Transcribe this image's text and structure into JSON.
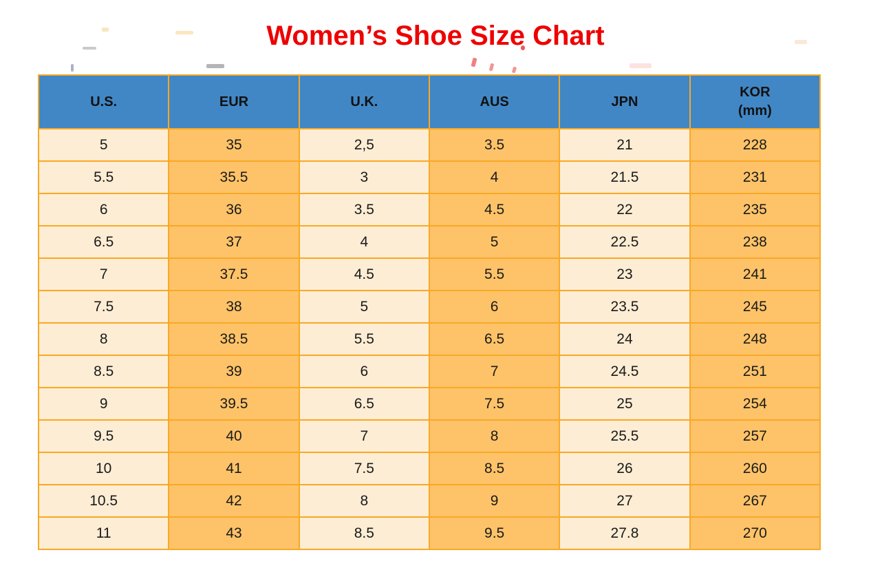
{
  "page": {
    "title": "Women’s Shoe Size Chart"
  },
  "colors": {
    "title_red": "#EE0000",
    "header_blue": "#4187C6",
    "cell_cream": "#FDEDD4",
    "cell_orange": "#FEC368",
    "border_orange": "#F9A825",
    "cell_text": "#1A1A1A"
  },
  "table": {
    "headers": [
      {
        "line1": "U.S."
      },
      {
        "line1": "EUR"
      },
      {
        "line1": "U.K."
      },
      {
        "line1": "AUS"
      },
      {
        "line1": "JPN"
      },
      {
        "line1": "KOR",
        "line2": "(mm)"
      }
    ]
  },
  "chart_data": {
    "type": "table",
    "title": "Women’s Shoe Size Chart",
    "columns": [
      "U.S.",
      "EUR",
      "U.K.",
      "AUS",
      "JPN",
      "KOR (mm)"
    ],
    "rows": [
      [
        "5",
        "35",
        "2,5",
        "3.5",
        "21",
        "228"
      ],
      [
        "5.5",
        "35.5",
        "3",
        "4",
        "21.5",
        "231"
      ],
      [
        "6",
        "36",
        "3.5",
        "4.5",
        "22",
        "235"
      ],
      [
        "6.5",
        "37",
        "4",
        "5",
        "22.5",
        "238"
      ],
      [
        "7",
        "37.5",
        "4.5",
        "5.5",
        "23",
        "241"
      ],
      [
        "7.5",
        "38",
        "5",
        "6",
        "23.5",
        "245"
      ],
      [
        "8",
        "38.5",
        "5.5",
        "6.5",
        "24",
        "248"
      ],
      [
        "8.5",
        "39",
        "6",
        "7",
        "24.5",
        "251"
      ],
      [
        "9",
        "39.5",
        "6.5",
        "7.5",
        "25",
        "254"
      ],
      [
        "9.5",
        "40",
        "7",
        "8",
        "25.5",
        "257"
      ],
      [
        "10",
        "41",
        "7.5",
        "8.5",
        "26",
        "260"
      ],
      [
        "10.5",
        "42",
        "8",
        "9",
        "27",
        "267"
      ],
      [
        "11",
        "43",
        "8.5",
        "9.5",
        "27.8",
        "270"
      ]
    ],
    "layout": {
      "header_fill": "#4187C6",
      "odd_column_fill": "#FDEDD4",
      "even_column_fill": "#FEC368",
      "grid": "on",
      "grid_color": "#F9A825"
    }
  }
}
